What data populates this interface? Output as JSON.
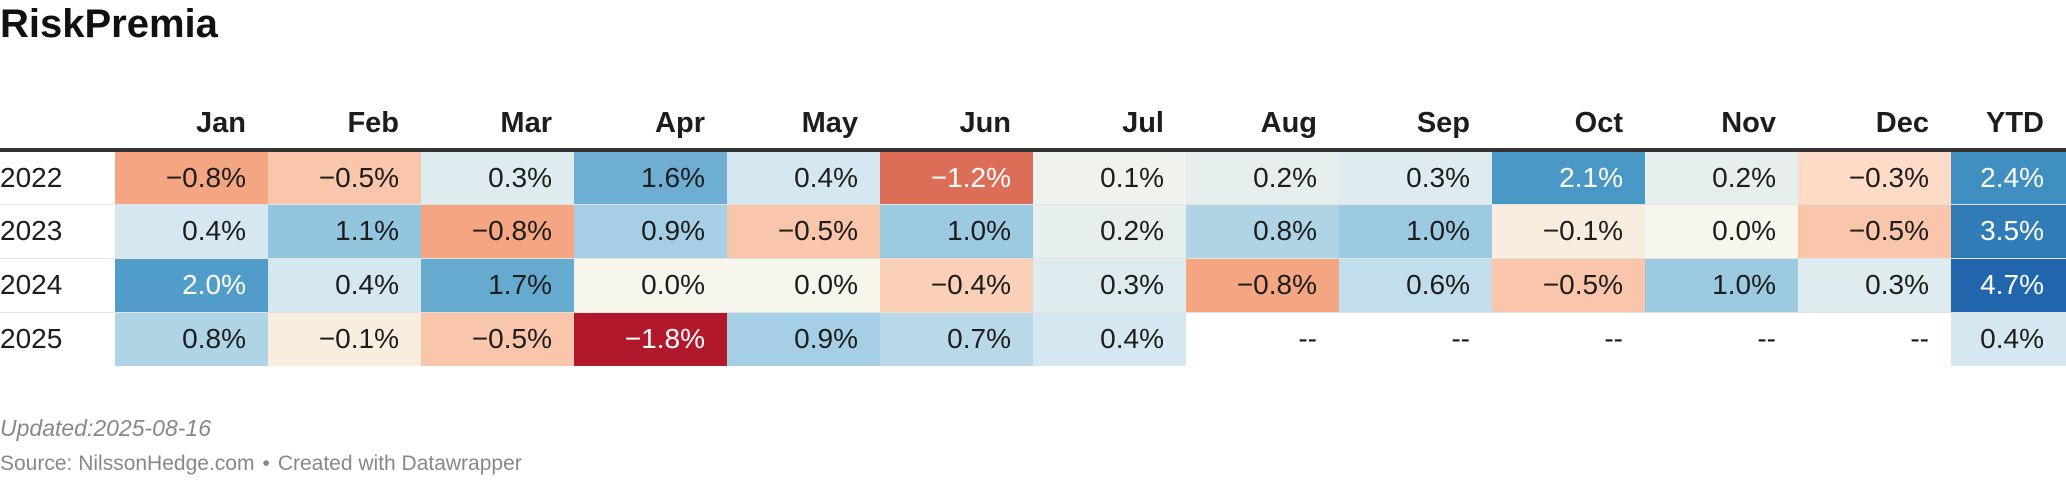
{
  "title": "RiskPremia",
  "chart_data": {
    "type": "heatmap",
    "title": "RiskPremia",
    "columns": [
      "Jan",
      "Feb",
      "Mar",
      "Apr",
      "May",
      "Jun",
      "Jul",
      "Aug",
      "Sep",
      "Oct",
      "Nov",
      "Dec",
      "YTD"
    ],
    "rows": [
      {
        "year": "2022",
        "values": [
          -0.8,
          -0.5,
          0.3,
          1.6,
          0.4,
          -1.2,
          0.1,
          0.2,
          0.3,
          2.1,
          0.2,
          -0.3,
          2.4
        ]
      },
      {
        "year": "2023",
        "values": [
          0.4,
          1.1,
          -0.8,
          0.9,
          -0.5,
          1.0,
          0.2,
          0.8,
          1.0,
          -0.1,
          0.0,
          -0.5,
          3.5
        ]
      },
      {
        "year": "2024",
        "values": [
          2.0,
          0.4,
          1.7,
          0.0,
          0.0,
          -0.4,
          0.3,
          -0.8,
          0.6,
          -0.5,
          1.0,
          0.3,
          4.7
        ]
      },
      {
        "year": "2025",
        "values": [
          0.8,
          -0.1,
          -0.5,
          -1.8,
          0.9,
          0.7,
          0.4,
          null,
          null,
          null,
          null,
          null,
          0.4
        ]
      }
    ],
    "unit": "%",
    "missing_label": "--",
    "color_scale": {
      "negative": "#b2182b",
      "neutral": "#f7f6ec",
      "positive": "#2166ac"
    }
  },
  "footer": {
    "updated": "Updated:2025-08-16",
    "source": "Source: NilssonHedge.com",
    "separator": "•",
    "credit": "Created with Datawrapper"
  }
}
